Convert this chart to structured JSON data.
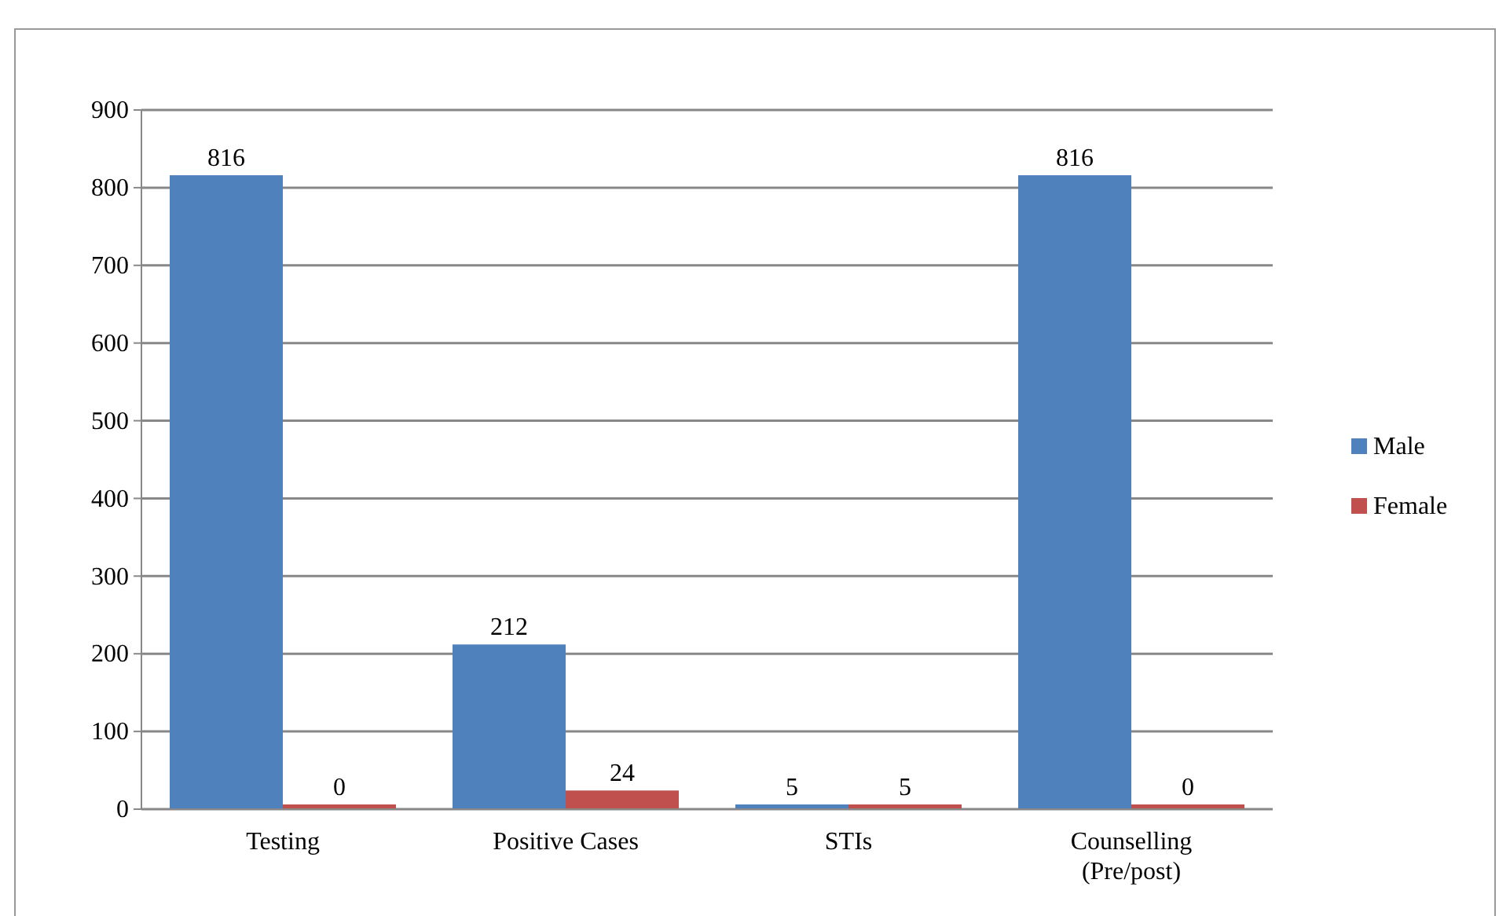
{
  "chart_data": {
    "type": "bar",
    "categories": [
      "Testing",
      "Positive Cases",
      "STIs",
      "Counselling (Pre/post)"
    ],
    "series": [
      {
        "name": "Male",
        "color": "#4f81bd",
        "values": [
          816,
          212,
          5,
          816
        ]
      },
      {
        "name": "Female",
        "color": "#c0504d",
        "values": [
          0,
          24,
          5,
          0
        ]
      }
    ],
    "ylim": [
      0,
      900
    ],
    "yticks": [
      0,
      100,
      200,
      300,
      400,
      500,
      600,
      700,
      800,
      900
    ],
    "grid": "y",
    "legend": "right",
    "data_labels": true
  }
}
